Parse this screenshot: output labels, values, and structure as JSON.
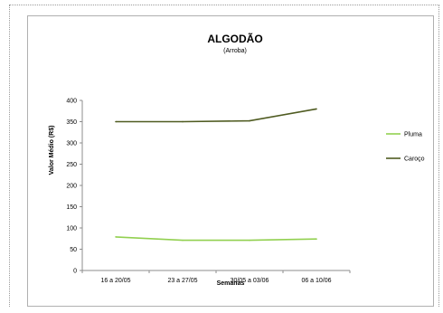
{
  "chart_data": {
    "type": "line",
    "title": "ALGODÃO",
    "subtitle": "(Arroba)",
    "xlabel": "Semanas",
    "ylabel": "Valor Médio (R$)",
    "categories": [
      "16 a 20/05",
      "23 a 27/05",
      "30/05 a 03/06",
      "06 a 10/06"
    ],
    "yticks": [
      "0",
      "50",
      "100",
      "150",
      "200",
      "250",
      "300",
      "350",
      "400"
    ],
    "ylim": [
      0,
      400
    ],
    "grid": false,
    "legend_position": "right",
    "series": [
      {
        "name": "Pluma",
        "values": [
          79,
          71,
          71,
          74
        ],
        "color": "#92d050"
      },
      {
        "name": "Caroço",
        "values": [
          350,
          350,
          352,
          380
        ],
        "color": "#4f5b21"
      }
    ]
  }
}
